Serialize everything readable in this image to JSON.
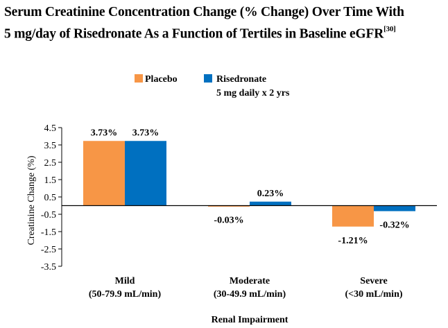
{
  "title": {
    "line1": "Serum Creatinine Concentration Change (% Change) Over Time With",
    "line2": "5 mg/day of Risedronate As a Function of Tertiles in Baseline eGFR",
    "ref": "[30]"
  },
  "colors": {
    "placebo": "#F79646",
    "risedronate": "#0070C0",
    "axis": "#000000"
  },
  "chart_data": {
    "type": "bar",
    "title": "Serum Creatinine Concentration Change (% Change) Over Time With 5 mg/day of Risedronate As a Function of Tertiles in Baseline eGFR[30]",
    "xlabel": "Renal Impairment",
    "ylabel": "Creatinine Change (%)",
    "ylim": [
      -3.5,
      4.5
    ],
    "yticks": [
      4.5,
      3.5,
      2.5,
      1.5,
      0.5,
      -0.5,
      -1.5,
      -2.5,
      -3.5
    ],
    "ytick_labels": [
      "4.5",
      "3.5",
      "2.5",
      "1.5",
      "0.5",
      "-0.5",
      "-1.5",
      "-2.5",
      "-3.5"
    ],
    "categories": [
      {
        "name": "Mild",
        "sub": "(50-79.9 mL/min)"
      },
      {
        "name": "Moderate",
        "sub": "(30-49.9 mL/min)"
      },
      {
        "name": "Severe",
        "sub": "(<30 mL/min)"
      }
    ],
    "series": [
      {
        "name": "Placebo",
        "values": [
          3.73,
          -0.03,
          -1.21
        ],
        "labels": [
          "3.73%",
          "-0.03%",
          "-1.21%"
        ]
      },
      {
        "name": "Risedronate",
        "name_line2": "5 mg daily x 2 yrs",
        "values": [
          3.73,
          0.23,
          -0.32
        ],
        "labels": [
          "3.73%",
          "0.23%",
          "-0.32%"
        ]
      }
    ],
    "legend": "top-center",
    "grid": false
  }
}
